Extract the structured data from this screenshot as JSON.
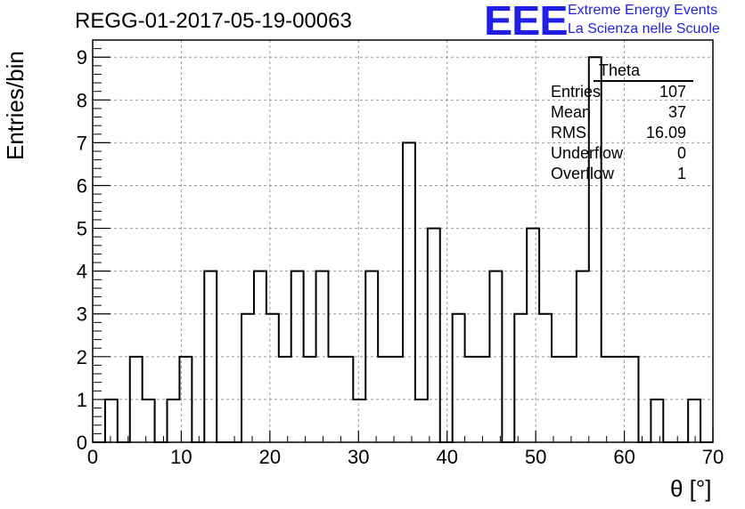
{
  "header": {
    "title": "REGG-01-2017-05-19-00063",
    "logo_text": "EEE",
    "brand_line1": "Extreme Energy Events",
    "brand_line2": "La Scienza nelle Scuole",
    "brand_color": "#1f1fe6"
  },
  "stats_box": {
    "title": "Theta",
    "rows": [
      {
        "label": "Entries",
        "value": "107"
      },
      {
        "label": "Mean",
        "value": "37"
      },
      {
        "label": "RMS",
        "value": "16.09"
      },
      {
        "label": "Underflow",
        "value": "0"
      },
      {
        "label": "Overflow",
        "value": "1"
      }
    ]
  },
  "chart_data": {
    "type": "bar",
    "histogram": true,
    "xlabel": "θ [°]",
    "ylabel": "Entries/bin",
    "xlim": [
      0,
      70
    ],
    "ylim": [
      0,
      9.4
    ],
    "bin_width": 1.4,
    "x_ticks": [
      "0",
      "10",
      "20",
      "30",
      "40",
      "50",
      "60",
      "70"
    ],
    "y_ticks": [
      "0",
      "1",
      "2",
      "3",
      "4",
      "5",
      "6",
      "7",
      "8",
      "9"
    ],
    "grid": true,
    "values": [
      0,
      1,
      0,
      2,
      1,
      0,
      1,
      2,
      0,
      4,
      0,
      0,
      3,
      4,
      3,
      2,
      4,
      2,
      4,
      2,
      2,
      1,
      4,
      2,
      2,
      7,
      1,
      5,
      0,
      3,
      2,
      2,
      4,
      0,
      3,
      5,
      3,
      2,
      2,
      4,
      9,
      2,
      2,
      2,
      0,
      1,
      0,
      0,
      1,
      0
    ]
  }
}
